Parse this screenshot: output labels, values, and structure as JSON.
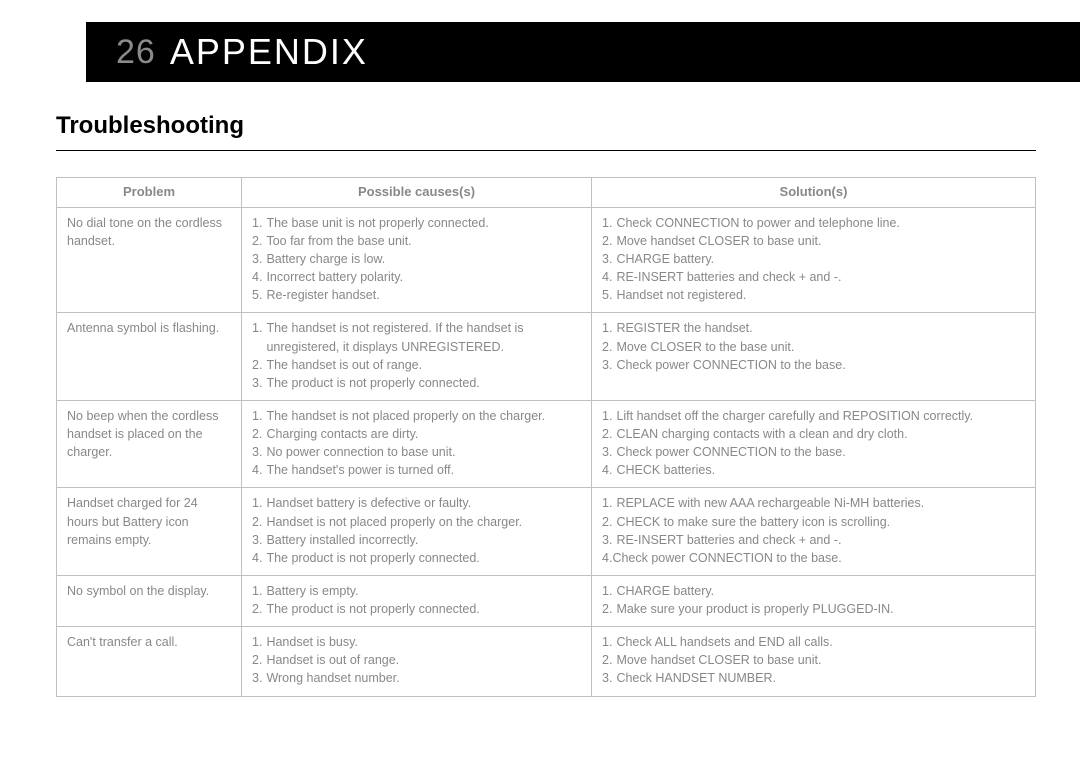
{
  "header": {
    "page_number": "26",
    "title": "APPENDIX"
  },
  "section_title": "Troubleshooting",
  "table": {
    "columns": [
      "Problem",
      "Possible causes(s)",
      "Solution(s)"
    ],
    "rows": [
      {
        "problem": "No dial tone on the cordless handset.",
        "causes": [
          "The base unit is not properly connected.",
          "Too far from the base unit.",
          "Battery charge is low.",
          "Incorrect battery polarity.",
          "Re-register handset."
        ],
        "solutions": [
          "Check CONNECTION to power and telephone line.",
          "Move handset CLOSER to base unit.",
          "CHARGE battery.",
          "RE-INSERT batteries and check + and -.",
          "Handset not registered."
        ]
      },
      {
        "problem": "Antenna symbol is flashing.",
        "causes": [
          "The handset is not registered. If the handset is unregistered, it displays UNREGISTERED.",
          "The handset is out of range.",
          "The product is not properly connected."
        ],
        "solutions": [
          "REGISTER the handset.",
          "Move CLOSER to the base unit.",
          "Check power CONNECTION to the base."
        ]
      },
      {
        "problem": "No beep when the cordless handset is placed on the charger.",
        "causes": [
          "The handset is not placed properly on the charger.",
          "Charging contacts are dirty.",
          "No power connection to base unit.",
          "The handset's power is turned off."
        ],
        "solutions": [
          "Lift handset off the charger carefully and REPOSITION correctly.",
          "CLEAN charging contacts with a clean and dry cloth.",
          "Check power CONNECTION to the base.",
          "CHECK batteries."
        ]
      },
      {
        "problem": "Handset charged for 24 hours but Battery icon remains empty.",
        "causes": [
          "Handset battery is defective or faulty.",
          "Handset is not placed properly on the charger.",
          "Battery installed incorrectly.",
          "The product is not properly connected."
        ],
        "solutions": [
          "REPLACE with new AAA rechargeable Ni-MH batteries.",
          "CHECK to make sure the battery icon is scrolling.",
          "RE-INSERT batteries and check + and -.",
          "Check power CONNECTION to the base."
        ],
        "solutions_last_no_space": true
      },
      {
        "problem": "No symbol on the display.",
        "causes": [
          "Battery is empty.",
          "The product is not properly connected."
        ],
        "solutions": [
          "CHARGE battery.",
          "Make sure your product is properly PLUGGED-IN."
        ]
      },
      {
        "problem": "Can't transfer a call.",
        "causes": [
          "Handset is busy.",
          "Handset is out of range.",
          "Wrong handset number."
        ],
        "solutions": [
          "Check ALL handsets and END all calls.",
          "Move handset CLOSER to base unit.",
          "Check HANDSET NUMBER."
        ]
      }
    ]
  }
}
